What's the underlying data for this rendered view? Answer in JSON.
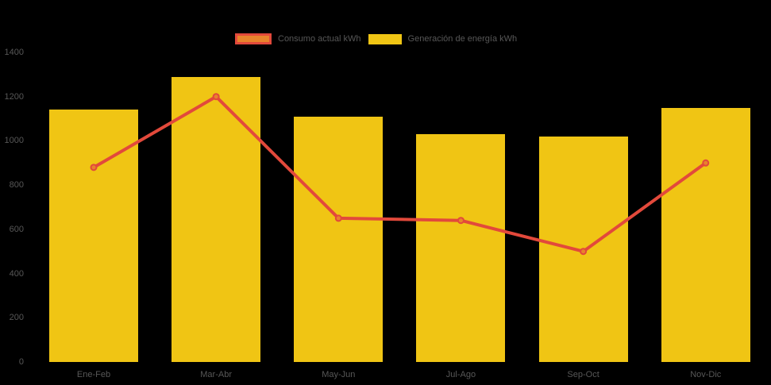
{
  "chart_data": {
    "type": "bar",
    "subtype": "combo-bar-line",
    "title": "",
    "xlabel": "",
    "ylabel": "",
    "categories": [
      "Ene-Feb",
      "Mar-Abr",
      "May-Jun",
      "Jul-Ago",
      "Sep-Oct",
      "Nov-Dic"
    ],
    "series": [
      {
        "name": "Consumo actual kWh",
        "type": "line",
        "values": [
          880,
          1200,
          650,
          640,
          500,
          900
        ],
        "color": "#E2493B",
        "marker_fill": "#E8832C"
      },
      {
        "name": "Generación de energía kWh",
        "type": "bar",
        "values": [
          1140,
          1290,
          1110,
          1030,
          1020,
          1150
        ],
        "color": "#F0C514"
      }
    ],
    "ylim": [
      0,
      1400
    ],
    "yticks": [
      0,
      200,
      400,
      600,
      800,
      1000,
      1200,
      1400
    ],
    "grid": false,
    "legend_position": "top",
    "background_color": "#000000",
    "text_color": "#575757"
  }
}
